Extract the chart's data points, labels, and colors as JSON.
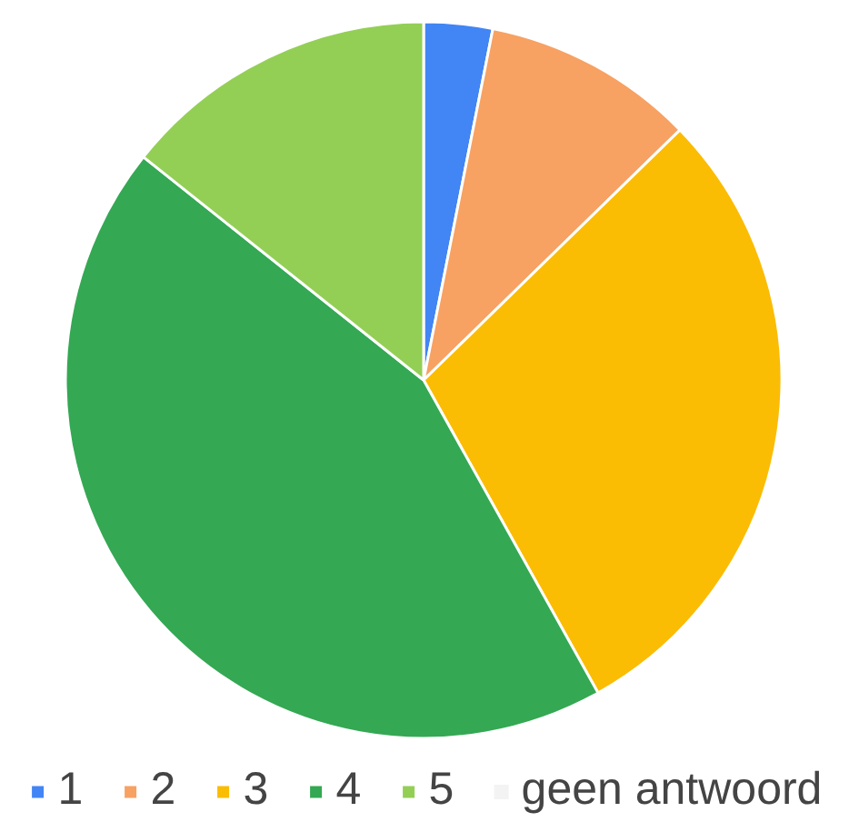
{
  "chart_data": {
    "type": "pie",
    "categories": [
      "1",
      "2",
      "3",
      "4",
      "5",
      "geen antwoord"
    ],
    "values": [
      3.1,
      9.6,
      29.2,
      43.8,
      14.3,
      0
    ],
    "colors": [
      "#4285f4",
      "#f7a163",
      "#fbbc04",
      "#34a853",
      "#93cf55",
      "#f3f3f3"
    ],
    "legend": "bottom"
  }
}
